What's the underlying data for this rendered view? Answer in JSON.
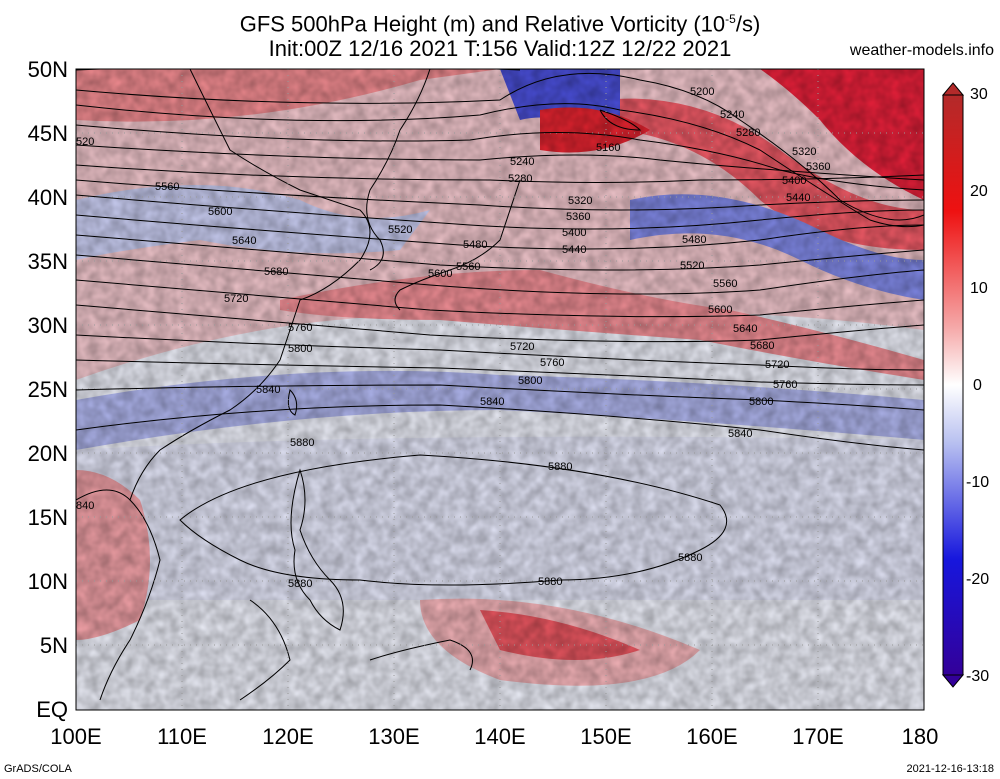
{
  "header": {
    "title_line1": "GFS 500hPa Height (m) and Relative Vorticity (10",
    "title_exp": "-5",
    "title_unit": "/s)",
    "title_line2": "Init:00Z 12/16 2021 T:156 Valid:12Z 12/22 2021",
    "site": "weather-models.info"
  },
  "footer": {
    "left": "GrADS/COLA",
    "right": "2021-12-16-13:18"
  },
  "map": {
    "lat_labels": [
      "50N",
      "45N",
      "40N",
      "35N",
      "30N",
      "25N",
      "20N",
      "15N",
      "10N",
      "5N",
      "EQ"
    ],
    "lon_labels": [
      "100E",
      "110E",
      "120E",
      "130E",
      "140E",
      "150E",
      "160E",
      "170E",
      "180"
    ]
  },
  "colorbar": {
    "labels": [
      "30",
      "20",
      "10",
      "0",
      "-10",
      "-20",
      "-30"
    ]
  },
  "contours": [
    {
      "v": "5200"
    },
    {
      "v": "5240"
    },
    {
      "v": "5280"
    },
    {
      "v": "5320"
    },
    {
      "v": "5360"
    },
    {
      "v": "5400"
    },
    {
      "v": "5440"
    },
    {
      "v": "5480"
    },
    {
      "v": "5520"
    },
    {
      "v": "5560"
    },
    {
      "v": "5600"
    },
    {
      "v": "5640"
    },
    {
      "v": "5680"
    },
    {
      "v": "5720"
    },
    {
      "v": "5760"
    },
    {
      "v": "5800"
    },
    {
      "v": "5840"
    },
    {
      "v": "5880"
    }
  ],
  "contour_labels": [
    {
      "t": "5200"
    },
    {
      "t": "5240"
    },
    {
      "t": "5280"
    },
    {
      "t": "5160"
    },
    {
      "t": "5320"
    },
    {
      "t": "5360"
    },
    {
      "t": "5400"
    },
    {
      "t": "5440"
    },
    {
      "t": "5240"
    },
    {
      "t": "5280"
    },
    {
      "t": "5320"
    },
    {
      "t": "5360"
    },
    {
      "t": "5400"
    },
    {
      "t": "5440"
    },
    {
      "t": "5480"
    },
    {
      "t": "5520"
    },
    {
      "t": "5560"
    },
    {
      "t": "5600"
    },
    {
      "t": "5640"
    },
    {
      "t": "5680"
    },
    {
      "t": "5720"
    },
    {
      "t": "5760"
    },
    {
      "t": "5800"
    },
    {
      "t": "5840"
    },
    {
      "t": "5560"
    },
    {
      "t": "5600"
    },
    {
      "t": "5640"
    },
    {
      "t": "5680"
    },
    {
      "t": "5720"
    },
    {
      "t": "5760"
    },
    {
      "t": "5800"
    },
    {
      "t": "5840"
    },
    {
      "t": "5880"
    },
    {
      "t": "5720"
    },
    {
      "t": "5760"
    },
    {
      "t": "5800"
    },
    {
      "t": "5840"
    },
    {
      "t": "5880"
    },
    {
      "t": "5880"
    },
    {
      "t": "5880"
    },
    {
      "t": "5880"
    },
    {
      "t": "5520"
    },
    {
      "t": "5480"
    },
    {
      "t": "5600"
    },
    {
      "t": "5560"
    },
    {
      "t": "5480"
    },
    {
      "t": "5520"
    },
    {
      "t": "520"
    },
    {
      "t": "840"
    }
  ]
}
